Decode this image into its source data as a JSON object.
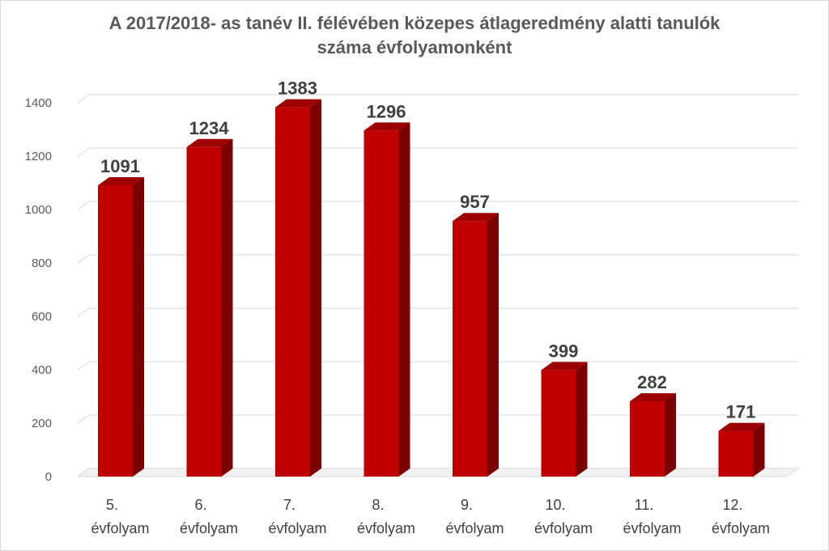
{
  "chart_data": {
    "type": "bar",
    "title": "A 2017/2018- as tanév II. félévében közepes átlageredmény alatti tanulók száma évfolyamonként",
    "title_lines": [
      "A 2017/2018- as tanév II. félévében közepes átlageredmény alatti tanulók",
      "száma évfolyamonként"
    ],
    "categories": [
      "5. évfolyam",
      "6. évfolyam",
      "7. évfolyam",
      "8. évfolyam",
      "9. évfolyam",
      "10. évfolyam",
      "11. évfolyam",
      "12. évfolyam"
    ],
    "category_lines": [
      [
        "5.",
        "évfolyam"
      ],
      [
        "6.",
        "évfolyam"
      ],
      [
        "7.",
        "évfolyam"
      ],
      [
        "8.",
        "évfolyam"
      ],
      [
        "9.",
        "évfolyam"
      ],
      [
        "10.",
        "évfolyam"
      ],
      [
        "11.",
        "évfolyam"
      ],
      [
        "12.",
        "évfolyam"
      ]
    ],
    "values": [
      1091,
      1234,
      1383,
      1296,
      957,
      399,
      282,
      171
    ],
    "data_labels": [
      "1091",
      "1234",
      "1383",
      "1296",
      "957",
      "399",
      "282",
      "171"
    ],
    "yticks": [
      "0",
      "200",
      "400",
      "600",
      "800",
      "1000",
      "1200",
      "1400"
    ],
    "ylim": [
      0,
      1400
    ],
    "grid": true,
    "legend": "none",
    "xlabel": "",
    "ylabel": "",
    "colors": {
      "bar_front": "#c00000",
      "bar_side": "#7a0000",
      "bar_top": "#9e0000",
      "grid": "#d9d9d9",
      "text": "#404040"
    }
  }
}
